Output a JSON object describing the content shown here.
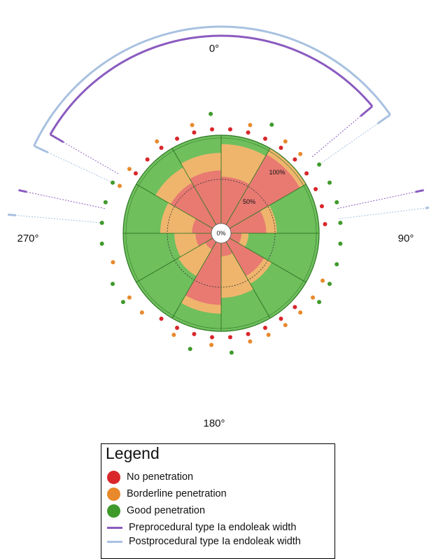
{
  "angle_labels": {
    "top": "0°",
    "right": "90°",
    "bottom": "180°",
    "left": "270°"
  },
  "radial_labels": {
    "center": "0%",
    "mid": "50%",
    "outer": "100%"
  },
  "legend": {
    "title": "Legend",
    "items": [
      {
        "label": "No penetration",
        "kind": "dot",
        "color": "#d9262a"
      },
      {
        "label": "Borderline penetration",
        "kind": "dot",
        "color": "#e8892c"
      },
      {
        "label": "Good penetration",
        "kind": "dot",
        "color": "#3f9a2b"
      },
      {
        "label": "Preprocedural type Ia endoleak width",
        "kind": "line",
        "color": "#8a5bbf"
      },
      {
        "label": "Postprocedural type Ia endoleak width",
        "kind": "line",
        "color": "#a8c1e0"
      }
    ]
  },
  "colors": {
    "no": "#e87a72",
    "border": "#efb56d",
    "good": "#6fbf5d",
    "no_dot": "#d9262a",
    "border_dot": "#e8892c",
    "good_dot": "#3f9a2b",
    "pre": "#8a5bbf",
    "post": "#a8c1e0"
  },
  "chart_data": {
    "type": "polar-stacked-bar",
    "sectors_deg": 12,
    "sector_width_deg": 30,
    "radial_axis_percent": [
      0,
      50,
      100
    ],
    "sectors": [
      {
        "start": 0,
        "no": 53,
        "border": 90,
        "good": 100
      },
      {
        "start": 30,
        "no": 92,
        "border": 100,
        "good": 100
      },
      {
        "start": 60,
        "no": 40,
        "border": 52,
        "good": 100
      },
      {
        "start": 90,
        "no": 12,
        "border": 20,
        "good": 100
      },
      {
        "start": 120,
        "no": 45,
        "border": 55,
        "good": 100
      },
      {
        "start": 150,
        "no": 15,
        "border": 62,
        "good": 100
      },
      {
        "start": 180,
        "no": 70,
        "border": 80,
        "good": 100
      },
      {
        "start": 210,
        "no": 10,
        "border": 45,
        "good": 100
      },
      {
        "start": 240,
        "no": 18,
        "border": 42,
        "good": 100
      },
      {
        "start": 270,
        "no": 22,
        "border": 58,
        "good": 100
      },
      {
        "start": 300,
        "no": 55,
        "border": 75,
        "good": 100
      },
      {
        "start": 330,
        "no": 60,
        "border": 80,
        "good": 100
      }
    ],
    "dot_rings": {
      "no": [
        0,
        10,
        20,
        30,
        40,
        50,
        60,
        70,
        80,
        130,
        140,
        150,
        160,
        170,
        180,
        190,
        200,
        210,
        300,
        310,
        320,
        330,
        340,
        350
      ],
      "border": [
        10,
        30,
        40,
        110,
        120,
        130,
        140,
        150,
        160,
        180,
        200,
        220,
        230,
        250,
        290,
        300,
        320,
        340
      ],
      "good": [
        20,
        50,
        60,
        70,
        80,
        90,
        100,
        110,
        120,
        170,
        190,
        230,
        240,
        260,
        270,
        280,
        290,
        350
      ]
    },
    "endoleak_arcs": {
      "pre": {
        "from": 300,
        "to": 50
      },
      "post": {
        "from": 295,
        "to": 55
      },
      "pre_side": {
        "from": 280,
        "to": 90
      },
      "post_side": {
        "from": 275,
        "to": 95
      }
    }
  }
}
